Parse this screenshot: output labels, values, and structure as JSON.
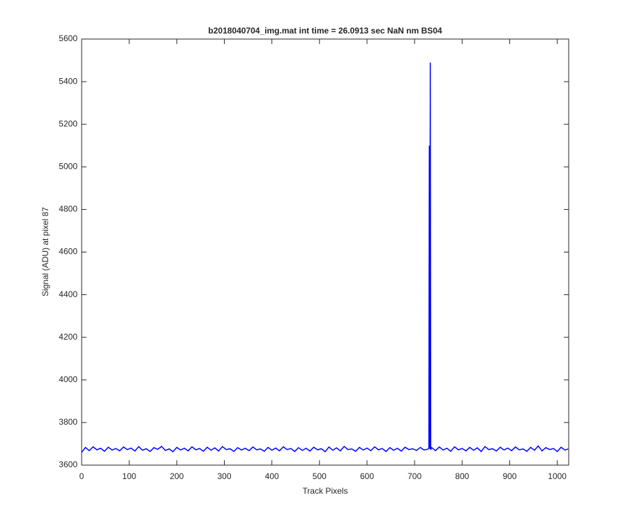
{
  "chart_data": {
    "type": "line",
    "title": "b2018040704_img.mat int time = 26.0913 sec  NaN nm BS04",
    "x_label": "Track Pixels",
    "y_label": "Signal (ADU) at pixel 87",
    "color": "#0000ff",
    "xlim": [
      0,
      1024
    ],
    "ylim": [
      3600,
      5600
    ],
    "xticks": [
      0,
      100,
      200,
      300,
      400,
      500,
      600,
      700,
      800,
      900,
      1000
    ],
    "yticks": [
      3600,
      3800,
      4000,
      4200,
      4400,
      4600,
      4800,
      5000,
      5200,
      5400,
      5600
    ],
    "x": [
      0,
      8,
      16,
      24,
      32,
      40,
      48,
      56,
      64,
      72,
      80,
      88,
      96,
      104,
      112,
      120,
      128,
      136,
      144,
      152,
      160,
      168,
      176,
      184,
      192,
      200,
      208,
      216,
      224,
      232,
      240,
      248,
      256,
      264,
      272,
      280,
      288,
      296,
      304,
      312,
      320,
      328,
      336,
      344,
      352,
      360,
      368,
      376,
      384,
      392,
      400,
      408,
      416,
      424,
      432,
      440,
      448,
      456,
      464,
      472,
      480,
      488,
      496,
      504,
      512,
      520,
      528,
      536,
      544,
      552,
      560,
      568,
      576,
      584,
      592,
      600,
      608,
      616,
      624,
      632,
      640,
      648,
      656,
      664,
      672,
      680,
      688,
      696,
      704,
      712,
      720,
      728,
      730,
      731,
      732,
      733,
      734,
      736,
      744,
      752,
      760,
      768,
      776,
      784,
      792,
      800,
      808,
      816,
      824,
      832,
      840,
      848,
      856,
      864,
      872,
      880,
      888,
      896,
      904,
      912,
      920,
      928,
      936,
      944,
      952,
      960,
      968,
      976,
      984,
      992,
      1000,
      1008,
      1016,
      1023
    ],
    "values": [
      3660,
      3683,
      3668,
      3686,
      3672,
      3679,
      3665,
      3684,
      3671,
      3678,
      3667,
      3685,
      3673,
      3680,
      3666,
      3687,
      3670,
      3677,
      3664,
      3682,
      3674,
      3688,
      3669,
      3676,
      3663,
      3683,
      3671,
      3679,
      3667,
      3686,
      3672,
      3678,
      3665,
      3684,
      3670,
      3681,
      3666,
      3687,
      3673,
      3677,
      3664,
      3682,
      3671,
      3679,
      3668,
      3685,
      3672,
      3676,
      3665,
      3683,
      3670,
      3680,
      3667,
      3686,
      3673,
      3678,
      3664,
      3682,
      3669,
      3679,
      3666,
      3684,
      3672,
      3677,
      3663,
      3685,
      3670,
      3681,
      3667,
      3688,
      3673,
      3676,
      3665,
      3683,
      3671,
      3680,
      3668,
      3686,
      3672,
      3678,
      3664,
      3682,
      3670,
      3679,
      3666,
      3684,
      3673,
      3677,
      3669,
      3683,
      3671,
      3675,
      3680,
      5100,
      3676,
      5490,
      3672,
      3682,
      3668,
      3685,
      3671,
      3679,
      3665,
      3686,
      3672,
      3678,
      3667,
      3683,
      3670,
      3681,
      3664,
      3687,
      3673,
      3677,
      3666,
      3684,
      3671,
      3680,
      3668,
      3685,
      3672,
      3676,
      3665,
      3683,
      3670,
      3690,
      3667,
      3682,
      3673,
      3678,
      3664,
      3684,
      3671,
      3676
    ]
  }
}
